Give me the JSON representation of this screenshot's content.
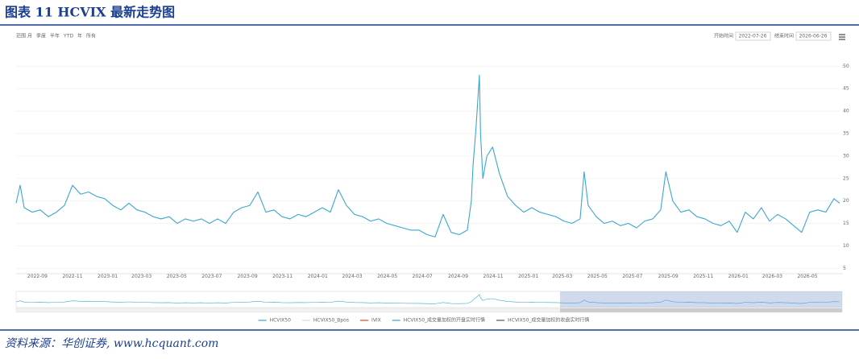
{
  "header": {
    "title": "图表 11 HCVIX 最新走势图"
  },
  "toolbar": {
    "range_label": "范围",
    "buttons": [
      "月",
      "季度",
      "半年",
      "YTD",
      "年",
      "所有"
    ],
    "start_label": "开始时间",
    "end_label": "结束时间"
  },
  "chart_data": {
    "type": "line",
    "xlim": [
      "2022-07-26",
      "2026-06-26"
    ],
    "xticks": [
      "2022-09",
      "2022-11",
      "2023-01",
      "2023-03",
      "2023-05",
      "2023-07",
      "2023-09",
      "2023-11",
      "2024-01",
      "2024-03",
      "2024-05",
      "2024-07",
      "2024-09",
      "2024-11",
      "2025-01",
      "2025-03",
      "2025-05",
      "2025-07",
      "2025-09",
      "2025-11",
      "2026-01",
      "2026-03",
      "2026-05"
    ],
    "ylim": [
      3.8,
      54
    ],
    "yticks": [
      5,
      10,
      15,
      20,
      25,
      30,
      35,
      40,
      45,
      50
    ],
    "grid": true,
    "x": [
      "2022-07-26",
      "2022-08-02",
      "2022-08-09",
      "2022-08-23",
      "2022-09-06",
      "2022-09-20",
      "2022-10-04",
      "2022-10-18",
      "2022-11-01",
      "2022-11-15",
      "2022-11-29",
      "2022-12-13",
      "2022-12-27",
      "2023-01-10",
      "2023-01-24",
      "2023-02-07",
      "2023-02-21",
      "2023-03-07",
      "2023-03-21",
      "2023-04-04",
      "2023-04-18",
      "2023-05-02",
      "2023-05-16",
      "2023-05-30",
      "2023-06-13",
      "2023-06-27",
      "2023-07-11",
      "2023-07-25",
      "2023-08-08",
      "2023-08-22",
      "2023-09-05",
      "2023-09-19",
      "2023-10-03",
      "2023-10-17",
      "2023-10-31",
      "2023-11-14",
      "2023-11-28",
      "2023-12-12",
      "2023-12-26",
      "2024-01-09",
      "2024-01-23",
      "2024-02-06",
      "2024-02-20",
      "2024-03-05",
      "2024-03-19",
      "2024-04-02",
      "2024-04-16",
      "2024-04-30",
      "2024-05-14",
      "2024-05-28",
      "2024-06-11",
      "2024-06-25",
      "2024-07-09",
      "2024-07-23",
      "2024-08-06",
      "2024-08-20",
      "2024-09-03",
      "2024-09-17",
      "2024-09-24",
      "2024-09-27",
      "2024-10-02",
      "2024-10-08",
      "2024-10-10",
      "2024-10-14",
      "2024-10-21",
      "2024-10-31",
      "2024-11-12",
      "2024-11-26",
      "2024-12-10",
      "2024-12-24",
      "2025-01-07",
      "2025-01-21",
      "2025-02-04",
      "2025-02-18",
      "2025-03-04",
      "2025-03-18",
      "2025-04-01",
      "2025-04-08",
      "2025-04-15",
      "2025-04-29",
      "2025-05-13",
      "2025-05-27",
      "2025-06-10",
      "2025-06-24",
      "2025-07-08",
      "2025-07-22",
      "2025-08-05",
      "2025-08-19",
      "2025-08-28",
      "2025-09-09",
      "2025-09-23",
      "2025-10-07",
      "2025-10-21",
      "2025-11-04",
      "2025-11-18",
      "2025-12-02",
      "2025-12-16",
      "2025-12-30",
      "2026-01-13",
      "2026-01-27",
      "2026-02-10",
      "2026-02-24",
      "2026-03-10",
      "2026-03-24",
      "2026-04-07",
      "2026-04-21",
      "2026-05-05",
      "2026-05-19",
      "2026-06-02",
      "2026-06-16",
      "2026-06-26"
    ],
    "series": [
      {
        "name": "HCVIX50",
        "color": "#3ba7d0",
        "values": [
          19.5,
          23.5,
          18.5,
          17.5,
          18.0,
          16.5,
          17.5,
          19.0,
          23.5,
          21.5,
          22.0,
          21.0,
          20.5,
          19.0,
          18.0,
          19.5,
          18.0,
          17.5,
          16.5,
          16.0,
          16.5,
          15.0,
          16.0,
          15.5,
          16.0,
          15.0,
          16.0,
          15.0,
          17.5,
          18.5,
          19.0,
          22.0,
          17.5,
          18.0,
          16.5,
          16.0,
          17.0,
          16.5,
          17.5,
          18.5,
          17.5,
          22.5,
          19.0,
          17.0,
          16.5,
          15.5,
          16.0,
          15.0,
          14.5,
          14.0,
          13.5,
          13.5,
          12.5,
          12.0,
          17.0,
          13.0,
          12.5,
          13.5,
          20.0,
          28.0,
          36.0,
          48.0,
          35.0,
          25.0,
          30.0,
          32.0,
          26.0,
          21.0,
          19.0,
          17.5,
          18.5,
          17.5,
          17.0,
          16.5,
          15.5,
          15.0,
          16.0,
          26.5,
          19.0,
          16.5,
          15.0,
          15.5,
          14.5,
          15.0,
          14.0,
          15.5,
          16.0,
          18.0,
          26.5,
          20.0,
          17.5,
          18.0,
          16.5,
          16.0,
          15.0,
          14.5,
          15.5,
          13.0,
          17.5,
          16.0,
          18.5,
          15.5,
          17.0,
          16.0,
          14.5,
          13.0,
          17.5,
          18.0,
          17.5,
          20.5,
          19.5
        ]
      },
      {
        "name": "HCVIX50_Bpos",
        "color": "#cccccc",
        "hidden": true
      },
      {
        "name": "IVIX",
        "color": "#e8412c"
      },
      {
        "name": "HCVIX50_成交量加权的开盘实时行情",
        "color": "#3ba7d0"
      },
      {
        "name": "HCVIX50_成交量加权的收盘实时行情",
        "color": "#555555"
      }
    ]
  },
  "footer": {
    "source": "资料来源：华创证券, www.hcquant.com"
  }
}
